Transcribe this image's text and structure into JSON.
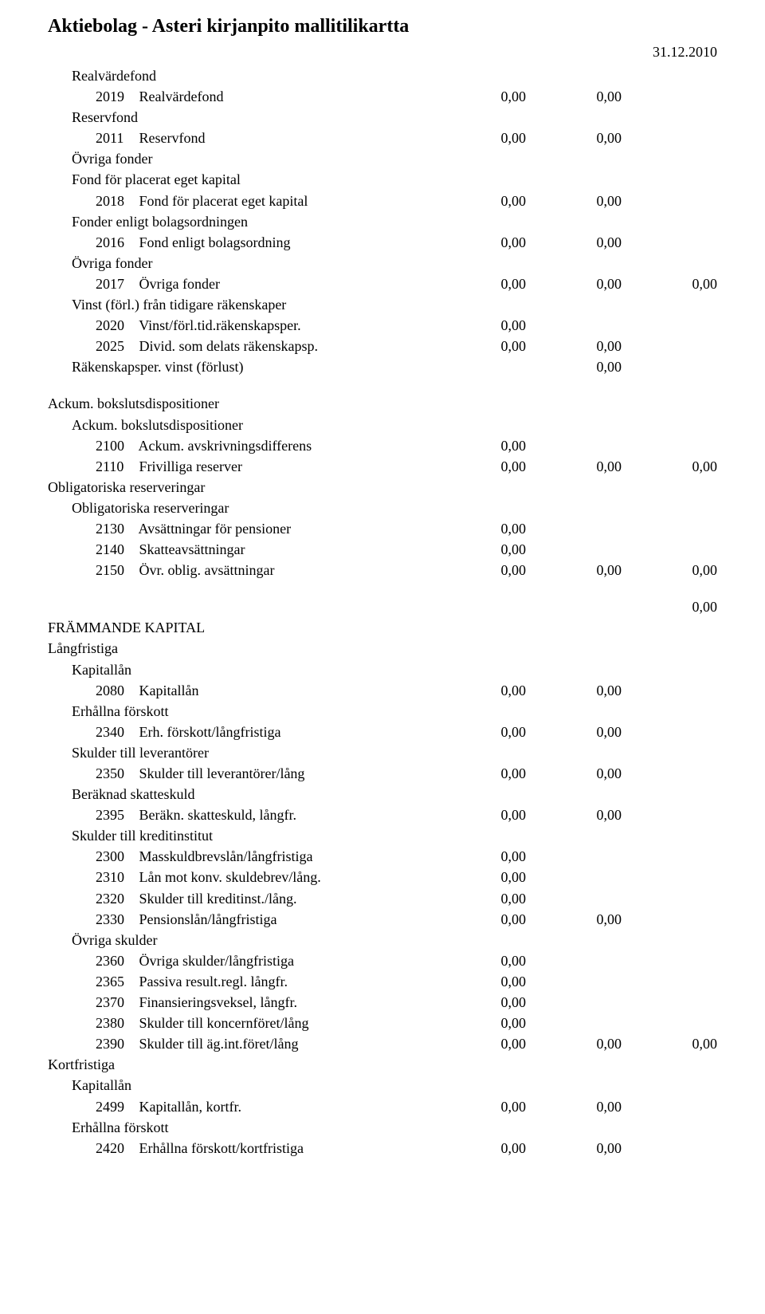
{
  "title": "Aktiebolag - Asteri kirjanpito mallitilikartta",
  "date": "31.12.2010",
  "rows": [
    {
      "indent": 1,
      "code": "",
      "label": "Realvärdefond",
      "v1": "",
      "v2": "",
      "v3": ""
    },
    {
      "indent": 2,
      "code": "2019",
      "label": "Realvärdefond",
      "v1": "0,00",
      "v2": "0,00",
      "v3": ""
    },
    {
      "indent": 1,
      "code": "",
      "label": "Reservfond",
      "v1": "",
      "v2": "",
      "v3": ""
    },
    {
      "indent": 2,
      "code": "2011",
      "label": "Reservfond",
      "v1": "0,00",
      "v2": "0,00",
      "v3": ""
    },
    {
      "indent": 1,
      "code": "",
      "label": "Övriga fonder",
      "v1": "",
      "v2": "",
      "v3": ""
    },
    {
      "indent": 1,
      "code": "",
      "label": "Fond för placerat eget kapital",
      "v1": "",
      "v2": "",
      "v3": ""
    },
    {
      "indent": 2,
      "code": "2018",
      "label": "Fond för placerat eget kapital",
      "v1": "0,00",
      "v2": "0,00",
      "v3": ""
    },
    {
      "indent": 1,
      "code": "",
      "label": "Fonder enligt bolagsordningen",
      "v1": "",
      "v2": "",
      "v3": ""
    },
    {
      "indent": 2,
      "code": "2016",
      "label": "Fond enligt bolagsordning",
      "v1": "0,00",
      "v2": "0,00",
      "v3": ""
    },
    {
      "indent": 1,
      "code": "",
      "label": "Övriga fonder",
      "v1": "",
      "v2": "",
      "v3": ""
    },
    {
      "indent": 2,
      "code": "2017",
      "label": "Övriga fonder",
      "v1": "0,00",
      "v2": "0,00",
      "v3": "0,00"
    },
    {
      "indent": 1,
      "code": "",
      "label": "Vinst (förl.) från tidigare räkenskaper",
      "v1": "",
      "v2": "",
      "v3": ""
    },
    {
      "indent": 2,
      "code": "2020",
      "label": "Vinst/förl.tid.räkenskapsper.",
      "v1": "0,00",
      "v2": "",
      "v3": ""
    },
    {
      "indent": 2,
      "code": "2025",
      "label": "Divid. som delats räkenskapsp.",
      "v1": "0,00",
      "v2": "0,00",
      "v3": ""
    },
    {
      "indent": 1,
      "code": "",
      "label": "Räkenskapsper. vinst (förlust)",
      "v1": "",
      "v2": "0,00",
      "v3": ""
    },
    {
      "blank": true
    },
    {
      "indent": 0,
      "code": "",
      "label": "Ackum. bokslutsdispositioner",
      "v1": "",
      "v2": "",
      "v3": ""
    },
    {
      "indent": 1,
      "code": "",
      "label": "Ackum. bokslutsdispositioner",
      "v1": "",
      "v2": "",
      "v3": ""
    },
    {
      "indent": 2,
      "code": "2100",
      "label": "Ackum. avskrivningsdifferens",
      "v1": "0,00",
      "v2": "",
      "v3": ""
    },
    {
      "indent": 2,
      "code": "2110",
      "label": "Frivilliga reserver",
      "v1": "0,00",
      "v2": "0,00",
      "v3": "0,00"
    },
    {
      "indent": 0,
      "code": "",
      "label": "Obligatoriska reserveringar",
      "v1": "",
      "v2": "",
      "v3": ""
    },
    {
      "indent": 1,
      "code": "",
      "label": "Obligatoriska reserveringar",
      "v1": "",
      "v2": "",
      "v3": ""
    },
    {
      "indent": 2,
      "code": "2130",
      "label": "Avsättningar för pensioner",
      "v1": "0,00",
      "v2": "",
      "v3": ""
    },
    {
      "indent": 2,
      "code": "2140",
      "label": "Skatteavsättningar",
      "v1": "0,00",
      "v2": "",
      "v3": ""
    },
    {
      "indent": 2,
      "code": "2150",
      "label": "Övr. oblig. avsättningar",
      "v1": "0,00",
      "v2": "0,00",
      "v3": "0,00"
    },
    {
      "blank": true
    },
    {
      "indent": 0,
      "code": "",
      "label": "",
      "v1": "",
      "v2": "",
      "v3": "0,00"
    },
    {
      "indent": 0,
      "code": "",
      "label": "FRÄMMANDE KAPITAL",
      "v1": "",
      "v2": "",
      "v3": ""
    },
    {
      "indent": 0,
      "code": "",
      "label": "Långfristiga",
      "v1": "",
      "v2": "",
      "v3": ""
    },
    {
      "indent": 1,
      "code": "",
      "label": "Kapitallån",
      "v1": "",
      "v2": "",
      "v3": ""
    },
    {
      "indent": 2,
      "code": "2080",
      "label": "Kapitallån",
      "v1": "0,00",
      "v2": "0,00",
      "v3": ""
    },
    {
      "indent": 1,
      "code": "",
      "label": "Erhållna förskott",
      "v1": "",
      "v2": "",
      "v3": ""
    },
    {
      "indent": 2,
      "code": "2340",
      "label": "Erh. förskott/långfristiga",
      "v1": "0,00",
      "v2": "0,00",
      "v3": ""
    },
    {
      "indent": 1,
      "code": "",
      "label": "Skulder till leverantörer",
      "v1": "",
      "v2": "",
      "v3": ""
    },
    {
      "indent": 2,
      "code": "2350",
      "label": "Skulder till leverantörer/lång",
      "v1": "0,00",
      "v2": "0,00",
      "v3": ""
    },
    {
      "indent": 1,
      "code": "",
      "label": "Beräknad skatteskuld",
      "v1": "",
      "v2": "",
      "v3": ""
    },
    {
      "indent": 2,
      "code": "2395",
      "label": "Beräkn. skatteskuld, långfr.",
      "v1": "0,00",
      "v2": "0,00",
      "v3": ""
    },
    {
      "indent": 1,
      "code": "",
      "label": "Skulder till kreditinstitut",
      "v1": "",
      "v2": "",
      "v3": ""
    },
    {
      "indent": 2,
      "code": "2300",
      "label": "Masskuldbrevslån/långfristiga",
      "v1": "0,00",
      "v2": "",
      "v3": ""
    },
    {
      "indent": 2,
      "code": "2310",
      "label": "Lån mot konv. skuldebrev/lång.",
      "v1": "0,00",
      "v2": "",
      "v3": ""
    },
    {
      "indent": 2,
      "code": "2320",
      "label": "Skulder till kreditinst./lång.",
      "v1": "0,00",
      "v2": "",
      "v3": ""
    },
    {
      "indent": 2,
      "code": "2330",
      "label": "Pensionslån/långfristiga",
      "v1": "0,00",
      "v2": "0,00",
      "v3": ""
    },
    {
      "indent": 1,
      "code": "",
      "label": "Övriga skulder",
      "v1": "",
      "v2": "",
      "v3": ""
    },
    {
      "indent": 2,
      "code": "2360",
      "label": "Övriga skulder/långfristiga",
      "v1": "0,00",
      "v2": "",
      "v3": ""
    },
    {
      "indent": 2,
      "code": "2365",
      "label": "Passiva result.regl. långfr.",
      "v1": "0,00",
      "v2": "",
      "v3": ""
    },
    {
      "indent": 2,
      "code": "2370",
      "label": "Finansieringsveksel, långfr.",
      "v1": "0,00",
      "v2": "",
      "v3": ""
    },
    {
      "indent": 2,
      "code": "2380",
      "label": "Skulder till koncernföret/lång",
      "v1": "0,00",
      "v2": "",
      "v3": ""
    },
    {
      "indent": 2,
      "code": "2390",
      "label": "Skulder till äg.int.föret/lång",
      "v1": "0,00",
      "v2": "0,00",
      "v3": "0,00"
    },
    {
      "indent": 0,
      "code": "",
      "label": "Kortfristiga",
      "v1": "",
      "v2": "",
      "v3": ""
    },
    {
      "indent": 1,
      "code": "",
      "label": "Kapitallån",
      "v1": "",
      "v2": "",
      "v3": ""
    },
    {
      "indent": 2,
      "code": "2499",
      "label": "Kapitallån, kortfr.",
      "v1": "0,00",
      "v2": "0,00",
      "v3": ""
    },
    {
      "indent": 1,
      "code": "",
      "label": "Erhållna förskott",
      "v1": "",
      "v2": "",
      "v3": ""
    },
    {
      "indent": 2,
      "code": "2420",
      "label": "Erhållna förskott/kortfristiga",
      "v1": "0,00",
      "v2": "0,00",
      "v3": ""
    }
  ]
}
